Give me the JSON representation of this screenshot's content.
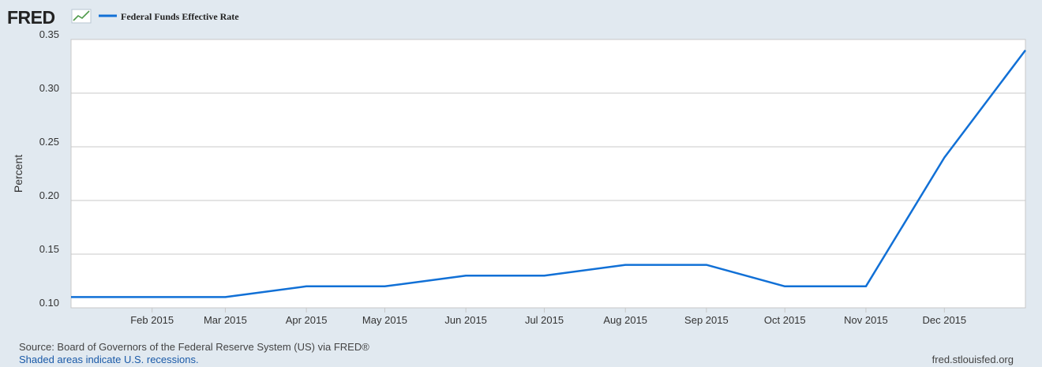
{
  "logo": "FRED",
  "chart_data": {
    "type": "line",
    "y_label": "Percent",
    "source": "Source: Board of Governors of the Federal Reserve System (US) via FRED®",
    "note": "Shaded areas indicate U.S. recessions.",
    "site": "fred.stlouisfed.org",
    "x": [
      "2015-01",
      "2015-02",
      "2015-03",
      "2015-04",
      "2015-05",
      "2015-06",
      "2015-07",
      "2015-08",
      "2015-09",
      "2015-10",
      "2015-11",
      "2015-12",
      "2016-01"
    ],
    "series": [
      {
        "name": "Federal Funds Effective Rate",
        "color": "#1170d6",
        "values": [
          0.11,
          0.11,
          0.11,
          0.12,
          0.12,
          0.13,
          0.13,
          0.14,
          0.14,
          0.12,
          0.12,
          0.24,
          0.34
        ]
      }
    ],
    "xlim": [
      "2015-01",
      "2016-01"
    ],
    "xticks": [
      {
        "value": "2015-02",
        "label": "Feb 2015"
      },
      {
        "value": "2015-03",
        "label": "Mar 2015"
      },
      {
        "value": "2015-04",
        "label": "Apr 2015"
      },
      {
        "value": "2015-05",
        "label": "May 2015"
      },
      {
        "value": "2015-06",
        "label": "Jun 2015"
      },
      {
        "value": "2015-07",
        "label": "Jul 2015"
      },
      {
        "value": "2015-08",
        "label": "Aug 2015"
      },
      {
        "value": "2015-09",
        "label": "Sep 2015"
      },
      {
        "value": "2015-10",
        "label": "Oct 2015"
      },
      {
        "value": "2015-11",
        "label": "Nov 2015"
      },
      {
        "value": "2015-12",
        "label": "Dec 2015"
      }
    ],
    "ylim": [
      0.1,
      0.35
    ],
    "yticks": [
      {
        "value": 0.1,
        "label": "0.10"
      },
      0.15,
      {
        "value": 0.2,
        "label": "0.20"
      },
      0.25,
      {
        "value": 0.3,
        "label": "0.30"
      },
      0.35
    ],
    "grid": true
  }
}
